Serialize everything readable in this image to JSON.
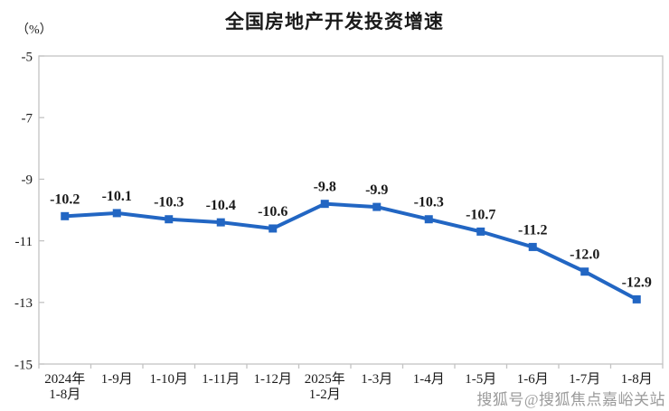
{
  "title": "全国房地产开发投资增速",
  "unit_label": "（%）",
  "watermark": "搜狐号@搜狐焦点嘉峪关站",
  "colors": {
    "line": "#2266C3",
    "marker": "#2266C3",
    "axis": "#c3c3c3",
    "text": "#1a1a1a",
    "watermark": "#9b9b9b"
  },
  "chart_data": {
    "type": "line",
    "title": "全国房地产开发投资增速",
    "ylabel": "（%）",
    "categories": [
      "2024年\n1-8月",
      "1-9月",
      "1-10月",
      "1-11月",
      "1-12月",
      "2025年\n1-2月",
      "1-3月",
      "1-4月",
      "1-5月",
      "1-6月",
      "1-7月",
      "1-8月"
    ],
    "values": [
      -10.2,
      -10.1,
      -10.3,
      -10.4,
      -10.6,
      -9.8,
      -9.9,
      -10.3,
      -10.7,
      -11.2,
      -12.0,
      -12.9
    ],
    "point_labels": [
      "-10.2",
      "-10.1",
      "-10.3",
      "-10.4",
      "-10.6",
      "-9.8",
      "-9.9",
      "-10.3",
      "-10.7",
      "-11.2",
      "-12.0",
      "-12.9"
    ],
    "ylim": [
      -15,
      -5
    ],
    "yticks": [
      -5,
      -7,
      -9,
      -11,
      -13,
      -15
    ],
    "grid": false,
    "legend": "none",
    "marker": "square"
  }
}
